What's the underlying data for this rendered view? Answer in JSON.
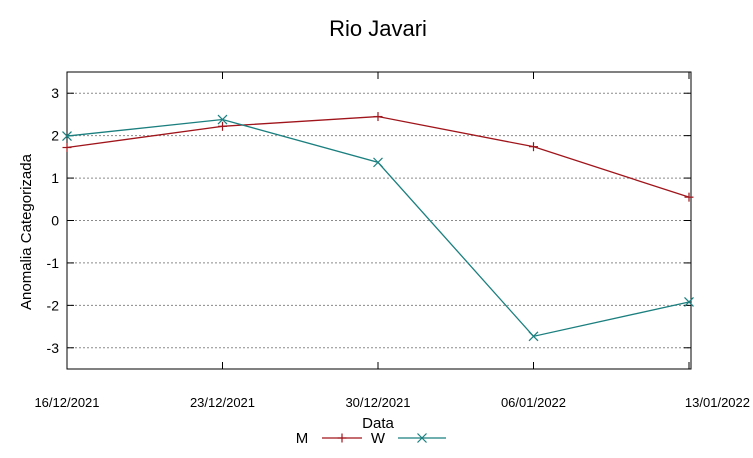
{
  "chart_data": {
    "type": "line",
    "title": "Rio Javari",
    "xlabel": "Data",
    "ylabel": "Anomalia Categorizada",
    "categories": [
      "16/12/2021",
      "23/12/2021",
      "30/12/2021",
      "06/01/2022",
      "13/01/2022"
    ],
    "yticks": [
      "3",
      "2",
      "1",
      "0",
      "-1",
      "-2",
      "-3"
    ],
    "ytick_values": [
      3,
      2,
      1,
      0,
      -1,
      -2,
      -3
    ],
    "ylim": [
      -3.5,
      3.5
    ],
    "grid": true,
    "legend": "bottom-center",
    "series": [
      {
        "name": "M",
        "marker": "+",
        "color": "#a0151b",
        "values": [
          1.72,
          2.22,
          2.45,
          1.74,
          0.55
        ]
      },
      {
        "name": "W",
        "marker": "x",
        "color": "#1b7f7f",
        "values": [
          1.99,
          2.38,
          1.37,
          -2.73,
          -1.92
        ]
      }
    ]
  }
}
